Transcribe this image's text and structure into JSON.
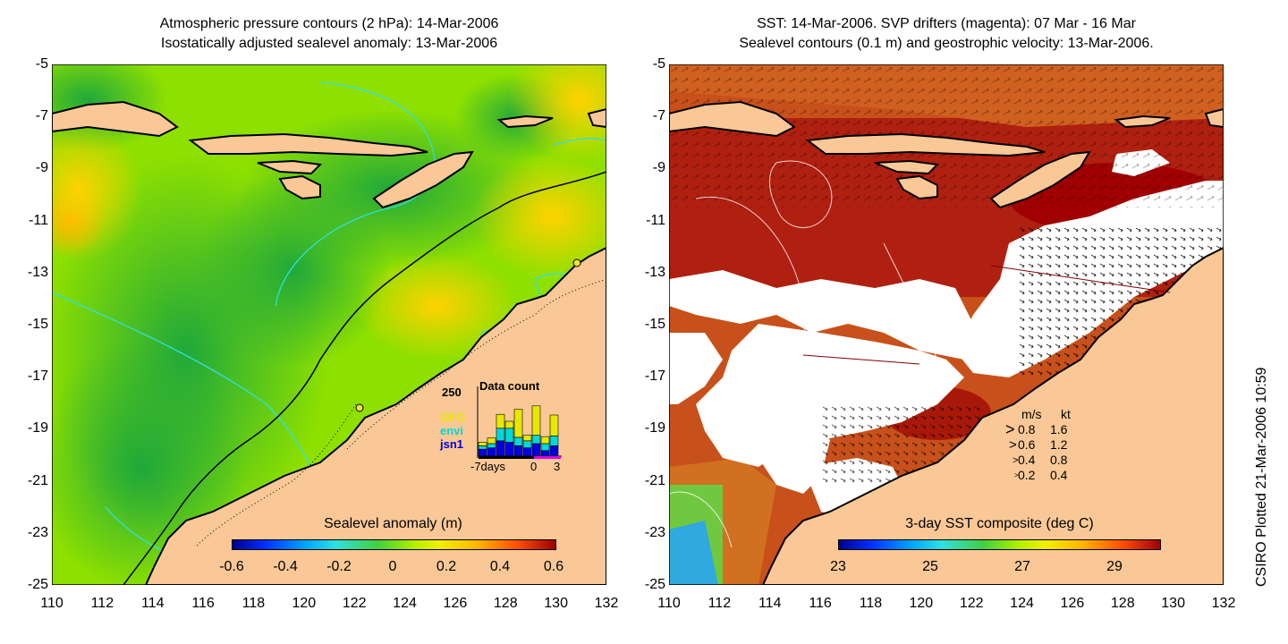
{
  "left_panel": {
    "title_line1": "Atmospheric pressure contours (2 hPa): 14-Mar-2006",
    "title_line2": "Isostatically adjusted sealevel anomaly: 13-Mar-2006",
    "colorbar_label": "Sealevel anomaly (m)",
    "colorbar_ticks": [
      "-0.6",
      "-0.4",
      "-0.2",
      "0",
      "0.2",
      "0.4",
      "0.6"
    ],
    "data_count": {
      "title": "Data count",
      "max_label": "250",
      "satellites": [
        {
          "name": "GFO",
          "color": "#e8e800"
        },
        {
          "name": "envi",
          "color": "#00d8d8"
        },
        {
          "name": "jsn1",
          "color": "#0000e0"
        }
      ],
      "x_labels": [
        "-7days",
        "0",
        "3"
      ]
    }
  },
  "right_panel": {
    "title_line1": "SST: 14-Mar-2006. SVP drifters (magenta): 07 Mar - 16 Mar",
    "title_line2": "Sealevel contours (0.1 m) and geostrophic velocity: 13-Mar-2006.",
    "colorbar_label": "3-day SST composite (deg C)",
    "colorbar_ticks": [
      "23",
      "25",
      "27",
      "29"
    ],
    "velocity_legend": {
      "header_ms": "m/s",
      "header_kt": "kt",
      "rows": [
        {
          "ms": "0.8",
          "kt": "1.6"
        },
        {
          "ms": "0.6",
          "kt": "1.2"
        },
        {
          "ms": "0.4",
          "kt": "0.8"
        },
        {
          "ms": "0.2",
          "kt": "0.4"
        }
      ]
    }
  },
  "axes": {
    "y_ticks": [
      "-5",
      "-7",
      "-9",
      "-11",
      "-13",
      "-15",
      "-17",
      "-19",
      "-21",
      "-23",
      "-25"
    ],
    "x_ticks": [
      "110",
      "112",
      "114",
      "116",
      "118",
      "120",
      "122",
      "124",
      "126",
      "128",
      "130",
      "132"
    ]
  },
  "footer": {
    "credit": "CSIRO Plotted 21-Mar-2006 10:59"
  },
  "colors": {
    "land": "#f9c896",
    "sla_green": "#2fc82f",
    "sla_yellow_green": "#c8f000",
    "sst_red": "#c0280a",
    "cloud_white": "#ffffff"
  }
}
